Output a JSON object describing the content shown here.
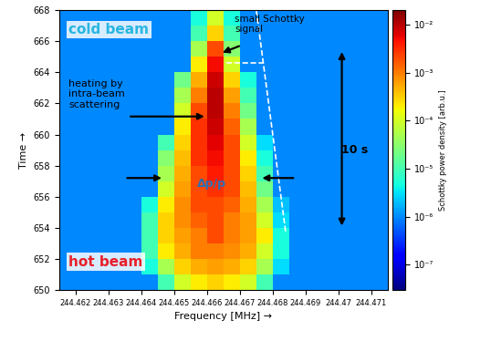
{
  "chart_data": {
    "type": "heatmap",
    "x_label": "Frequency [MHz] →",
    "y_label": "Time →",
    "x": [
      244.46175,
      244.46225,
      244.46275,
      244.46325,
      244.46375,
      244.46425,
      244.46475,
      244.46525,
      244.46575,
      244.46625,
      244.46675,
      244.46725,
      244.46775,
      244.46825,
      244.46875,
      244.46925,
      244.46975,
      244.47025,
      244.47075,
      244.47125
    ],
    "y": [
      650.5,
      651.5,
      652.5,
      653.5,
      654.5,
      655.5,
      656.5,
      657.5,
      658.5,
      659.5,
      660.5,
      661.5,
      662.5,
      663.5,
      664.5,
      665.5,
      666.5,
      667.5
    ],
    "cells": [
      [
        1e-06,
        1e-06,
        1e-06,
        1e-06,
        1e-06,
        1e-06,
        1e-05,
        0.0001,
        0.0002,
        0.0003,
        0.0002,
        0.0001,
        1e-05,
        1e-06,
        1e-06,
        1e-06,
        1e-06,
        1e-06,
        1e-06,
        1e-06
      ],
      [
        1e-06,
        1e-06,
        1e-06,
        1e-06,
        1e-06,
        5e-06,
        5e-05,
        0.0003,
        0.0005,
        0.0006,
        0.0005,
        0.0003,
        5e-05,
        3e-06,
        1e-06,
        1e-06,
        1e-06,
        1e-06,
        1e-06,
        1e-06
      ],
      [
        1e-06,
        1e-06,
        1e-06,
        1e-06,
        1e-06,
        1e-05,
        0.0002,
        0.0005,
        0.001,
        0.001,
        0.0008,
        0.0005,
        0.0001,
        5e-06,
        1e-06,
        1e-06,
        1e-06,
        1e-06,
        1e-06,
        1e-06
      ],
      [
        1e-06,
        1e-06,
        1e-06,
        1e-06,
        1e-06,
        1e-05,
        0.0003,
        0.0006,
        0.001,
        0.002,
        0.001,
        0.0006,
        0.0002,
        5e-06,
        1e-06,
        1e-06,
        1e-06,
        1e-06,
        1e-06,
        1e-06
      ],
      [
        1e-06,
        1e-06,
        1e-06,
        1e-06,
        1e-06,
        1e-05,
        0.0003,
        0.0008,
        0.0015,
        0.002,
        0.001,
        0.0006,
        0.0001,
        3e-06,
        1e-06,
        1e-06,
        1e-06,
        1e-06,
        1e-06,
        1e-06
      ],
      [
        1e-06,
        1e-06,
        1e-06,
        1e-06,
        1e-06,
        5e-06,
        0.0002,
        0.0008,
        0.002,
        0.002,
        0.0015,
        0.0005,
        5e-05,
        2e-06,
        1e-06,
        1e-06,
        1e-06,
        1e-06,
        1e-06,
        1e-06
      ],
      [
        1e-06,
        1e-06,
        1e-06,
        1e-06,
        1e-06,
        1e-06,
        0.0001,
        0.0006,
        0.002,
        0.003,
        0.002,
        0.0004,
        2e-05,
        1e-06,
        1e-06,
        1e-06,
        1e-06,
        1e-06,
        1e-06,
        1e-06
      ],
      [
        1e-06,
        1e-06,
        1e-06,
        1e-06,
        1e-06,
        1e-06,
        5e-05,
        0.0005,
        0.002,
        0.004,
        0.002,
        0.0003,
        1e-05,
        1e-06,
        1e-06,
        1e-06,
        1e-06,
        1e-06,
        1e-06,
        1e-06
      ],
      [
        1e-06,
        1e-06,
        1e-06,
        1e-06,
        1e-06,
        1e-06,
        3e-05,
        0.0004,
        0.003,
        0.005,
        0.002,
        0.0002,
        5e-06,
        1e-06,
        1e-06,
        1e-06,
        1e-06,
        1e-06,
        1e-06,
        1e-06
      ],
      [
        1e-06,
        1e-06,
        1e-06,
        1e-06,
        1e-06,
        1e-06,
        1e-05,
        0.0003,
        0.003,
        0.006,
        0.002,
        0.0001,
        3e-06,
        1e-06,
        1e-06,
        1e-06,
        1e-06,
        1e-06,
        1e-06,
        1e-06
      ],
      [
        1e-06,
        1e-06,
        1e-06,
        1e-06,
        1e-06,
        1e-06,
        1e-06,
        0.0002,
        0.003,
        0.008,
        0.0015,
        5e-05,
        1e-06,
        1e-06,
        1e-06,
        1e-06,
        1e-06,
        1e-06,
        1e-06,
        1e-06
      ],
      [
        1e-06,
        1e-06,
        1e-06,
        1e-06,
        1e-06,
        1e-06,
        1e-06,
        0.0001,
        0.002,
        0.01,
        0.001,
        2e-05,
        1e-06,
        1e-06,
        1e-06,
        1e-06,
        1e-06,
        1e-06,
        1e-06,
        1e-06
      ],
      [
        1e-06,
        1e-06,
        1e-06,
        1e-06,
        1e-06,
        1e-06,
        1e-06,
        5e-05,
        0.001,
        0.01,
        0.0006,
        1e-05,
        1e-06,
        1e-06,
        1e-06,
        1e-06,
        1e-06,
        1e-06,
        1e-06,
        1e-06
      ],
      [
        1e-06,
        1e-06,
        1e-06,
        1e-06,
        1e-06,
        1e-06,
        1e-06,
        2e-05,
        0.0005,
        0.008,
        0.0003,
        5e-06,
        1e-06,
        1e-06,
        1e-06,
        1e-06,
        1e-06,
        1e-06,
        1e-06,
        1e-06
      ],
      [
        1e-06,
        1e-06,
        1e-06,
        1e-06,
        1e-06,
        1e-06,
        1e-06,
        1e-06,
        0.0002,
        0.005,
        0.0001,
        1e-06,
        1e-06,
        1e-06,
        1e-06,
        1e-06,
        1e-06,
        1e-06,
        1e-06,
        1e-06
      ],
      [
        1e-06,
        1e-06,
        1e-06,
        1e-06,
        1e-06,
        1e-06,
        1e-06,
        1e-06,
        5e-05,
        0.002,
        3e-05,
        1e-06,
        1e-06,
        1e-06,
        1e-06,
        1e-06,
        1e-06,
        1e-06,
        1e-06,
        1e-06
      ],
      [
        1e-06,
        1e-06,
        1e-06,
        1e-06,
        1e-06,
        1e-06,
        1e-06,
        1e-06,
        1e-05,
        0.0003,
        1e-05,
        1e-06,
        1e-06,
        1e-06,
        1e-06,
        1e-06,
        1e-06,
        1e-06,
        1e-06,
        1e-06
      ],
      [
        1e-06,
        1e-06,
        1e-06,
        1e-06,
        1e-06,
        1e-06,
        1e-06,
        1e-06,
        5e-06,
        0.0001,
        5e-06,
        1e-06,
        1e-06,
        1e-06,
        1e-06,
        1e-06,
        1e-06,
        1e-06,
        1e-06,
        1e-06
      ]
    ],
    "xlim": [
      244.4615,
      244.4715
    ],
    "xticks": [
      244.462,
      244.463,
      244.464,
      244.465,
      244.466,
      244.467,
      244.468,
      244.469,
      244.47,
      244.471
    ],
    "ylim": [
      650,
      668
    ],
    "yticks": [
      650,
      652,
      654,
      656,
      658,
      660,
      662,
      664,
      666,
      668
    ],
    "grid": false,
    "colorbar": {
      "label": "Schottky power density [arb.u.]",
      "lim": [
        3e-08,
        0.02
      ],
      "ticks": [
        {
          "value": 1e-07,
          "label": "10⁻⁷"
        },
        {
          "value": 1e-06,
          "label": "10⁻⁶"
        },
        {
          "value": 1e-05,
          "label": "10⁻⁵"
        },
        {
          "value": 0.0001,
          "label": "10⁻⁴"
        },
        {
          "value": 0.001,
          "label": "10⁻³"
        },
        {
          "value": 0.01,
          "label": "10⁻²"
        }
      ]
    },
    "annotations": [
      {
        "text": "cold beam",
        "color": "#29b6e0"
      },
      {
        "text": "hot beam",
        "color": "#e8202a"
      },
      {
        "text": "small Schottky signal",
        "color": "#000000"
      },
      {
        "text": "heating by intra-beam scattering",
        "color": "#000000"
      },
      {
        "text": "Δp/p",
        "color": "#2a6fb8"
      },
      {
        "text": "10 s",
        "color": "#000000"
      }
    ]
  }
}
